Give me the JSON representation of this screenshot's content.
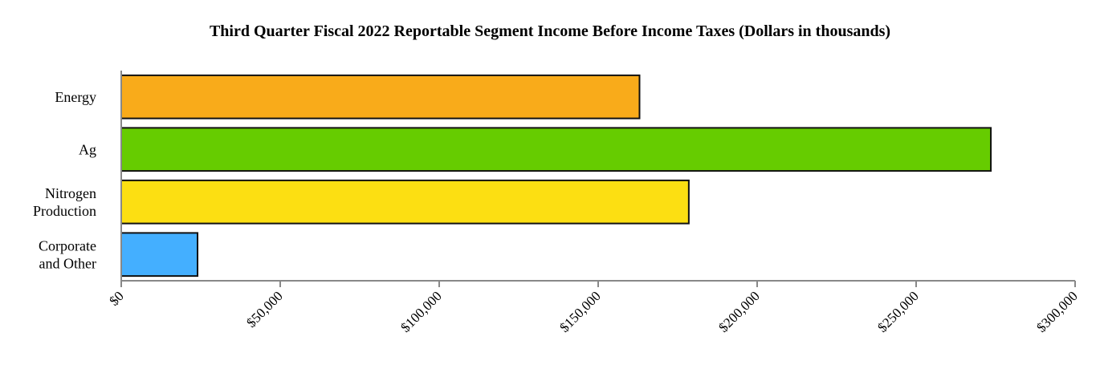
{
  "chart_data": {
    "type": "bar",
    "orientation": "horizontal",
    "title": "Third Quarter Fiscal 2022 Reportable Segment Income Before Income Taxes (Dollars in thousands)",
    "categories": [
      "Energy",
      "Ag",
      "Nitrogen Production",
      "Corporate and Other"
    ],
    "category_lines": [
      [
        "Energy"
      ],
      [
        "Ag"
      ],
      [
        "Nitrogen",
        "Production"
      ],
      [
        "Corporate",
        "and Other"
      ]
    ],
    "values": [
      163000,
      273500,
      178500,
      24000
    ],
    "colors": [
      "#F9AB1A",
      "#66CC00",
      "#FCDF12",
      "#44AFFF"
    ],
    "xlim": [
      0,
      300000
    ],
    "ticks": [
      0,
      50000,
      100000,
      150000,
      200000,
      250000,
      300000
    ],
    "tick_labels": [
      "$0",
      "$50,000",
      "$100,000",
      "$150,000",
      "$200,000",
      "$250,000",
      "$300,000"
    ],
    "grid": false,
    "legend": "none"
  }
}
